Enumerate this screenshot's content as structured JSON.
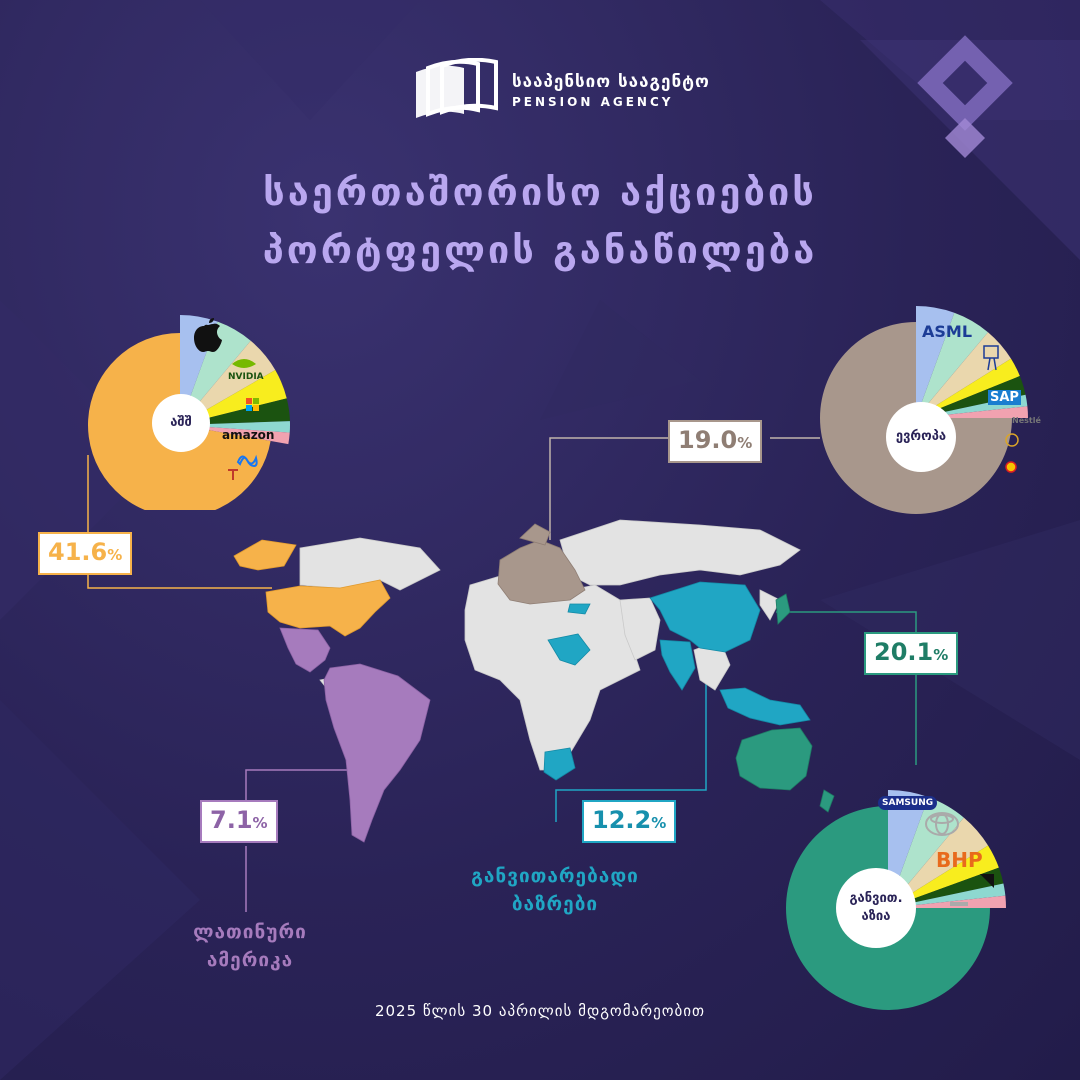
{
  "header": {
    "org_name": "სააპენსიო სააგენტო",
    "org_name_en": "PENSION AGENCY",
    "title_line1": "საერთაშორისო აქციების",
    "title_line2": "პორტფელის განაწილება"
  },
  "footer": {
    "date_note": "2025 წლის 30 აპრილის მდგომარეობით"
  },
  "colors": {
    "usa": "#f6b24a",
    "europe": "#a8978c",
    "asia": "#2b9a7f",
    "emerging": "#20a6c4",
    "latam": "#a67bbd",
    "map_other": "#e3e3e3",
    "title": "#b9a7ef"
  },
  "chart_data": [
    {
      "type": "pie",
      "region": "usa",
      "label": "აშშ",
      "share_percent": 41.6,
      "slices": [
        {
          "name": "Apple",
          "icon": "apple-icon",
          "color": "#a7c0ef",
          "values_deg": 20
        },
        {
          "name": "NVIDIA",
          "icon": "nvidia-icon",
          "color": "#aee3cc",
          "values_deg": 20
        },
        {
          "name": "Microsoft",
          "icon": "microsoft-icon",
          "color": "#ead7ad",
          "values_deg": 20
        },
        {
          "name": "amazon",
          "icon": "amazon-icon",
          "color": "#f8ed1e",
          "values_deg": 16
        },
        {
          "name": "Meta",
          "icon": "meta-icon",
          "color": "#1b5310",
          "values_deg": 12
        },
        {
          "name": "Tesla",
          "icon": "tesla-icon",
          "color": "#8ed8d0",
          "values_deg": 6
        },
        {
          "name": "other-small",
          "icon": "small-logo-icon",
          "color": "#f1a2b0",
          "values_deg": 6
        },
        {
          "name": "rest",
          "icon": "",
          "color": "#f6b24a",
          "values_deg": 260
        }
      ]
    },
    {
      "type": "pie",
      "region": "europe",
      "label": "ევროპა",
      "share_percent": 19.0,
      "slices": [
        {
          "name": "ASML",
          "icon": "asml-icon",
          "color": "#a7c0ef",
          "values_deg": 20
        },
        {
          "name": "Novo Nordisk",
          "icon": "novo-nordisk-icon",
          "color": "#aee3cc",
          "values_deg": 20
        },
        {
          "name": "SAP",
          "icon": "sap-icon",
          "color": "#ead7ad",
          "values_deg": 18
        },
        {
          "name": "Nestlé",
          "icon": "nestle-icon",
          "color": "#f8ed1e",
          "values_deg": 10
        },
        {
          "name": "LVMH",
          "icon": "lvmh-icon",
          "color": "#1b5310",
          "values_deg": 10
        },
        {
          "name": "Shell",
          "icon": "shell-icon",
          "color": "#8ed8d0",
          "values_deg": 6
        },
        {
          "name": "other-small",
          "icon": "small-logo-icon",
          "color": "#f1a2b0",
          "values_deg": 6
        },
        {
          "name": "rest",
          "icon": "",
          "color": "#a8978c",
          "values_deg": 270
        }
      ]
    },
    {
      "type": "pie",
      "region": "developed-asia",
      "label": "განვით. აზია",
      "share_percent": 20.1,
      "slices": [
        {
          "name": "SAMSUNG",
          "icon": "samsung-icon",
          "color": "#a7c0ef",
          "values_deg": 20
        },
        {
          "name": "Toyota",
          "icon": "toyota-icon",
          "color": "#aee3cc",
          "values_deg": 20
        },
        {
          "name": "BHP",
          "icon": "bhp-icon",
          "color": "#ead7ad",
          "values_deg": 18
        },
        {
          "name": "Commonwealth Bank",
          "icon": "cba-icon",
          "color": "#f8ed1e",
          "values_deg": 12
        },
        {
          "name": "Sony",
          "icon": "sony-icon",
          "color": "#1b5310",
          "values_deg": 8
        },
        {
          "name": "other-small-1",
          "icon": "small-logo-icon",
          "color": "#8ed8d0",
          "values_deg": 6
        },
        {
          "name": "other-small-2",
          "icon": "small-logo-icon",
          "color": "#f1a2b0",
          "values_deg": 6
        },
        {
          "name": "rest",
          "icon": "",
          "color": "#2b9a7f",
          "values_deg": 270
        }
      ]
    }
  ],
  "regions": {
    "usa": {
      "percent_value": "41.6",
      "percent_sign": "%"
    },
    "europe": {
      "percent_value": "19.0",
      "percent_sign": "%"
    },
    "asia": {
      "percent_value": "20.1",
      "percent_sign": "%"
    },
    "emerging": {
      "percent_value": "12.2",
      "percent_sign": "%",
      "label_line1": "განვითარებადი",
      "label_line2": "ბაზრები"
    },
    "latam": {
      "percent_value": "7.1",
      "percent_sign": "%",
      "label_line1": "ლათინური",
      "label_line2": "ამერიკა"
    }
  },
  "pie_labels": {
    "usa": "აშშ",
    "europe": "ევროპა",
    "asia_line1": "განვით.",
    "asia_line2": "აზია"
  },
  "logo_texts": {
    "nvidia": "NVIDIA",
    "amazon": "amazon",
    "asml": "ASML",
    "sap": "SAP",
    "nestle": "Nestlé",
    "samsung": "SAMSUNG",
    "bhp": "BHP"
  }
}
